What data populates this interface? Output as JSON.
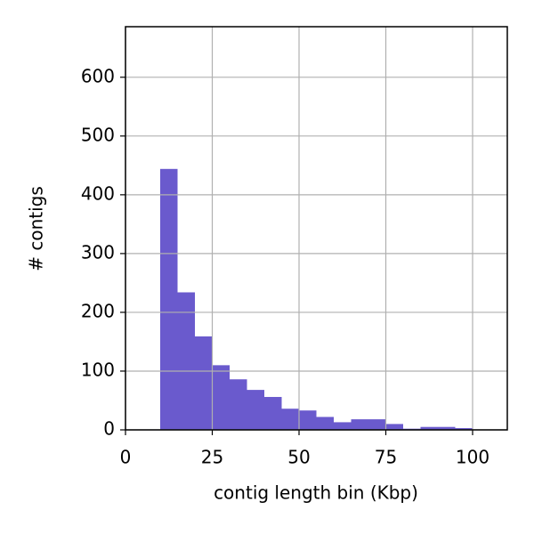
{
  "chart_data": {
    "type": "histogram",
    "xlabel": "contig length bin (Kbp)",
    "ylabel": "# contigs",
    "bins": [
      10,
      15,
      20,
      25,
      30,
      35,
      40,
      45,
      50,
      55,
      60,
      65,
      70,
      75,
      80,
      85,
      90,
      95,
      100
    ],
    "values": [
      444,
      234,
      159,
      110,
      86,
      68,
      56,
      36,
      33,
      22,
      13,
      18,
      18,
      10,
      2,
      5,
      5,
      3
    ],
    "color": "#6a5acd",
    "xlim": [
      0,
      110
    ],
    "xticks": [
      0,
      25,
      50,
      75,
      100
    ],
    "ylim": [
      0,
      686
    ],
    "yticks": [
      0,
      100,
      200,
      300,
      400,
      500,
      600
    ],
    "grid": true
  }
}
